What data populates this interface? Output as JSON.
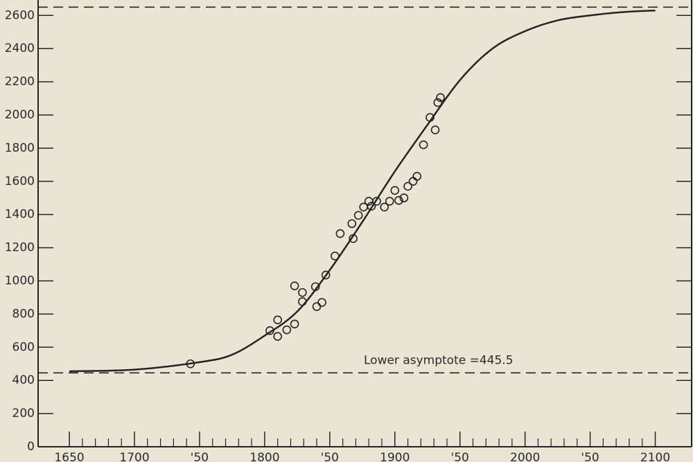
{
  "chart_data": {
    "type": "scatter",
    "xlim": [
      1626,
      2129
    ],
    "ylim": [
      0,
      2693
    ],
    "xticks": [
      1650,
      1700,
      {
        "value": 1750,
        "label": "'50"
      },
      1800,
      {
        "value": 1850,
        "label": "'50"
      },
      1900,
      {
        "value": 1950,
        "label": "'50"
      },
      2000,
      {
        "value": 2050,
        "label": "'50"
      },
      2100
    ],
    "yticks": [
      0,
      200,
      400,
      600,
      800,
      1000,
      1200,
      1400,
      1600,
      1800,
      2000,
      2200,
      2400,
      2600
    ],
    "color": "#222222",
    "points": {
      "x": [
        1743,
        1804,
        1810,
        1810,
        1817,
        1823,
        1823,
        1829,
        1829,
        1839,
        1840,
        1844,
        1847,
        1854,
        1858,
        1868,
        1867,
        1872,
        1876,
        1880,
        1882,
        1886,
        1892,
        1896,
        1900,
        1903,
        1907,
        1910,
        1914,
        1917,
        1922,
        1927,
        1931,
        1933,
        1935
      ],
      "values": [
        500,
        700,
        765,
        665,
        705,
        740,
        970,
        930,
        875,
        965,
        845,
        870,
        1035,
        1150,
        1285,
        1255,
        1345,
        1395,
        1445,
        1480,
        1450,
        1480,
        1445,
        1480,
        1545,
        1485,
        1500,
        1570,
        1600,
        1630,
        1820,
        1985,
        1910,
        2075,
        2105
      ]
    },
    "curve": {
      "x": [
        1650,
        1700,
        1750,
        1775,
        1800,
        1825,
        1850,
        1875,
        1900,
        1925,
        1950,
        1975,
        2000,
        2025,
        2050,
        2075,
        2100
      ],
      "values": [
        455,
        465,
        510,
        555,
        670,
        815,
        1065,
        1355,
        1660,
        1940,
        2210,
        2400,
        2505,
        2570,
        2600,
        2620,
        2630
      ]
    },
    "upper_asymptote": 2650,
    "lower_asymptote": {
      "label": "Lower asymptote =",
      "value": 445.5
    }
  }
}
